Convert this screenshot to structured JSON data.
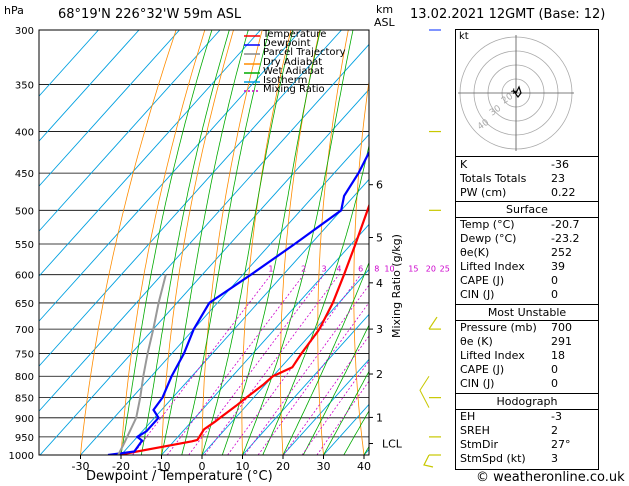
{
  "header": {
    "hpa_unit": "hPa",
    "location": "68°19'N  226°32'W  59m  ASL",
    "km_unit": "km",
    "asl_unit": "ASL",
    "datetime": "13.02.2021  12GMT  (Base: 12)"
  },
  "legend": [
    {
      "label": "Temperature",
      "color": "#ff0000",
      "dash": "none"
    },
    {
      "label": "Dewpoint",
      "color": "#0000ff",
      "dash": "none"
    },
    {
      "label": "Parcel Trajectory",
      "color": "#888888",
      "dash": "none"
    },
    {
      "label": "Dry Adiabat",
      "color": "#ff8c00",
      "dash": "none"
    },
    {
      "label": "Wet Adiabat",
      "color": "#00aa00",
      "dash": "none"
    },
    {
      "label": "Isotherm",
      "color": "#00a0e0",
      "dash": "none"
    },
    {
      "label": "Mixing Ratio",
      "color": "#cc00cc",
      "dash": "2,2"
    }
  ],
  "colors": {
    "temperature": "#ff0000",
    "dewpoint": "#0000ff",
    "parcel": "#999999",
    "dry_adiabat": "#ff8c00",
    "wet_adiabat": "#00aa00",
    "isotherm": "#00a0e0",
    "mixing_ratio": "#cc00cc",
    "wind": "#c8c800"
  },
  "chart_data": {
    "type": "line",
    "title": "",
    "xlabel": "Dewpoint / Temperature (°C)",
    "ylabel": "Mixing Ratio (g/kg)",
    "xlim": [
      -35,
      40
    ],
    "pressure_levels": [
      300,
      350,
      400,
      450,
      500,
      550,
      600,
      650,
      700,
      750,
      800,
      850,
      900,
      950,
      1000
    ],
    "x_ticks": [
      -30,
      -20,
      -10,
      0,
      10,
      20,
      30,
      40
    ],
    "km_ticks": [
      {
        "label": "1",
        "p": 899
      },
      {
        "label": "2",
        "p": 795
      },
      {
        "label": "3",
        "p": 700
      },
      {
        "label": "4",
        "p": 614
      },
      {
        "label": "5",
        "p": 540
      },
      {
        "label": "6",
        "p": 465
      }
    ],
    "lcl": {
      "label": "LCL",
      "p": 968
    },
    "mixing_ratio_labels": [
      "1",
      "2",
      "3",
      "4",
      "6",
      "8",
      "10",
      "15",
      "20",
      "25"
    ],
    "series": [
      {
        "name": "Temperature",
        "points": [
          [
            -20.7,
            1000
          ],
          [
            -5.5,
            962
          ],
          [
            -4.5,
            958
          ],
          [
            -5.2,
            930
          ],
          [
            -4.2,
            910
          ],
          [
            -3.8,
            900
          ],
          [
            -2.5,
            870
          ],
          [
            -1.8,
            850
          ],
          [
            -0.5,
            820
          ],
          [
            0,
            800
          ],
          [
            2.8,
            780
          ],
          [
            2,
            750
          ],
          [
            1,
            700
          ],
          [
            -1.5,
            650
          ],
          [
            -5,
            600
          ],
          [
            -9,
            550
          ],
          [
            -13.5,
            500
          ],
          [
            -18.5,
            450
          ],
          [
            -24,
            400
          ],
          [
            -29.5,
            350
          ],
          [
            -35,
            300
          ]
        ]
      },
      {
        "name": "Dewpoint",
        "points": [
          [
            -23.2,
            1000
          ],
          [
            -17.5,
            990
          ],
          [
            -18,
            960
          ],
          [
            -20,
            950
          ],
          [
            -19,
            935
          ],
          [
            -19,
            900
          ],
          [
            -22,
            880
          ],
          [
            -22.5,
            850
          ],
          [
            -25,
            800
          ],
          [
            -27,
            750
          ],
          [
            -30,
            700
          ],
          [
            -32,
            650
          ],
          [
            -28,
            600
          ],
          [
            -24,
            550
          ],
          [
            -20,
            500
          ],
          [
            -22.5,
            480
          ],
          [
            -24,
            450
          ],
          [
            -28,
            400
          ],
          [
            -33,
            350
          ],
          [
            -39,
            300
          ]
        ]
      },
      {
        "name": "Parcel Trajectory",
        "points": [
          [
            -20.7,
            1000
          ],
          [
            -21.8,
            968
          ],
          [
            -24.5,
            900
          ],
          [
            -28,
            850
          ],
          [
            -32,
            800
          ],
          [
            -36,
            750
          ],
          [
            -40,
            700
          ],
          [
            -44.5,
            650
          ],
          [
            -49,
            600
          ]
        ]
      }
    ]
  },
  "wind_barbs_present": true,
  "hodograph": {
    "unit_label": "kt",
    "ring_labels": [
      "20",
      "30",
      "40"
    ]
  },
  "indices": [
    {
      "label": "K",
      "value": "-36"
    },
    {
      "label": "Totals Totals",
      "value": "23"
    },
    {
      "label": "PW (cm)",
      "value": "0.22"
    }
  ],
  "surface": {
    "title": "Surface",
    "rows": [
      {
        "label": "Temp (°C)",
        "value": "-20.7"
      },
      {
        "label": "Dewp (°C)",
        "value": "-23.2"
      },
      {
        "label": "θe(K)",
        "value": "252"
      },
      {
        "label": "Lifted Index",
        "value": "39"
      },
      {
        "label": "CAPE (J)",
        "value": "0"
      },
      {
        "label": "CIN (J)",
        "value": "0"
      }
    ]
  },
  "most_unstable": {
    "title": "Most Unstable",
    "rows": [
      {
        "label": "Pressure (mb)",
        "value": "700"
      },
      {
        "label": "θe (K)",
        "value": "291"
      },
      {
        "label": "Lifted Index",
        "value": "18"
      },
      {
        "label": "CAPE (J)",
        "value": "0"
      },
      {
        "label": "CIN (J)",
        "value": "0"
      }
    ]
  },
  "hodograph_table": {
    "title": "Hodograph",
    "rows": [
      {
        "label": "EH",
        "value": "-3"
      },
      {
        "label": "SREH",
        "value": "2"
      },
      {
        "label": "StmDir",
        "value": "27°"
      },
      {
        "label": "StmSpd (kt)",
        "value": "3"
      }
    ]
  },
  "footer": {
    "credit": "© weatheronline.co.uk"
  }
}
